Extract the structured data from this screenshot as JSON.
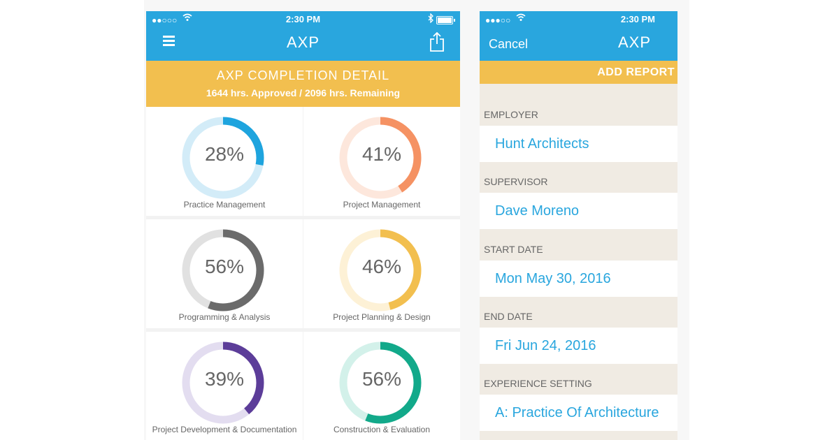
{
  "colors": {
    "blue": "#29a6de",
    "yellow": "#f2bf4f"
  },
  "left_phone": {
    "status": {
      "time": "2:30 PM",
      "signal": "●●○○○"
    },
    "nav": {
      "title": "AXP",
      "menu_icon": "hamburger-menu-icon",
      "share_icon": "share-icon"
    },
    "banner": {
      "title": "AXP COMPLETION DETAIL",
      "subtitle": "1644 hrs. Approved / 2096 hrs. Remaining"
    },
    "tiles": [
      {
        "pct_label": "28%",
        "pct": 28,
        "label": "Practice Management",
        "color": "#1ea4de",
        "track": "#d3ecf8"
      },
      {
        "pct_label": "41%",
        "pct": 41,
        "label": "Project Management",
        "color": "#f59263",
        "track": "#fde7dc"
      },
      {
        "pct_label": "56%",
        "pct": 56,
        "label": "Programming & Analysis",
        "color": "#6b6b6b",
        "track": "#e1e1e1"
      },
      {
        "pct_label": "46%",
        "pct": 46,
        "label": "Project Planning & Design",
        "color": "#f2bf4f",
        "track": "#fdf1d6"
      },
      {
        "pct_label": "39%",
        "pct": 39,
        "label": "Project Development & Documentation",
        "color": "#5c3d99",
        "track": "#e3ddf0"
      },
      {
        "pct_label": "56%",
        "pct": 56,
        "label": "Construction & Evaluation",
        "color": "#12a98a",
        "track": "#d3f1ea"
      }
    ]
  },
  "right_phone": {
    "status": {
      "time": "2:30 PM",
      "signal": "●●●○○"
    },
    "nav": {
      "cancel": "Cancel",
      "title": "AXP"
    },
    "banner": {
      "action": "ADD REPORT"
    },
    "sections": [
      {
        "label": "EMPLOYER",
        "value": "Hunt Architects"
      },
      {
        "label": "SUPERVISOR",
        "value": "Dave Moreno"
      },
      {
        "label": "START DATE",
        "value": "Mon May 30, 2016"
      },
      {
        "label": "END DATE",
        "value": "Fri Jun 24, 2016"
      },
      {
        "label": "EXPERIENCE SETTING",
        "value": "A: Practice Of Architecture"
      }
    ]
  }
}
